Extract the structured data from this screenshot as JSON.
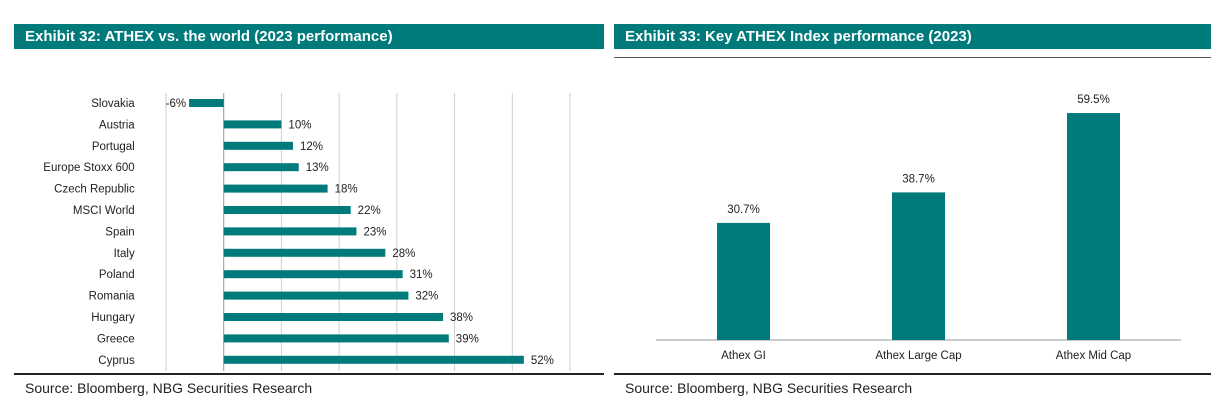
{
  "colors": {
    "bar": "#007a7a",
    "header_bg": "#007a7a",
    "grid": "#d0d0d0",
    "axis": "#999999"
  },
  "exhibit32": {
    "title": "Exhibit 32: ATHEX vs. the world (2023 performance)",
    "source": "Source: Bloomberg, NBG Securities Research"
  },
  "exhibit33": {
    "title": "Exhibit 33: Key ATHEX Index performance (2023)",
    "source": "Source: Bloomberg, NBG Securities Research"
  },
  "chart_data": [
    {
      "type": "bar",
      "orientation": "horizontal",
      "title": "Exhibit 32: ATHEX vs. the world (2023 performance)",
      "categories": [
        "Slovakia",
        "Austria",
        "Portugal",
        "Europe Stoxx 600",
        "Czech Republic",
        "MSCI World",
        "Spain",
        "Italy",
        "Poland",
        "Romania",
        "Hungary",
        "Greece",
        "Cyprus"
      ],
      "values": [
        -6,
        10,
        12,
        13,
        18,
        22,
        23,
        28,
        31,
        32,
        38,
        39,
        52
      ],
      "labels": [
        "-6%",
        "10%",
        "12%",
        "13%",
        "18%",
        "22%",
        "23%",
        "28%",
        "31%",
        "32%",
        "38%",
        "39%",
        "52%"
      ],
      "xlim": [
        -10,
        60
      ],
      "grid": true,
      "legend": "none"
    },
    {
      "type": "bar",
      "orientation": "vertical",
      "title": "Exhibit 33: Key ATHEX Index performance (2023)",
      "categories": [
        "Athex GI",
        "Athex Large Cap",
        "Athex Mid Cap"
      ],
      "values": [
        30.7,
        38.7,
        59.5
      ],
      "labels": [
        "30.7%",
        "38.7%",
        "59.5%"
      ],
      "ylim": [
        0,
        70
      ],
      "grid": false,
      "legend": "none"
    }
  ]
}
